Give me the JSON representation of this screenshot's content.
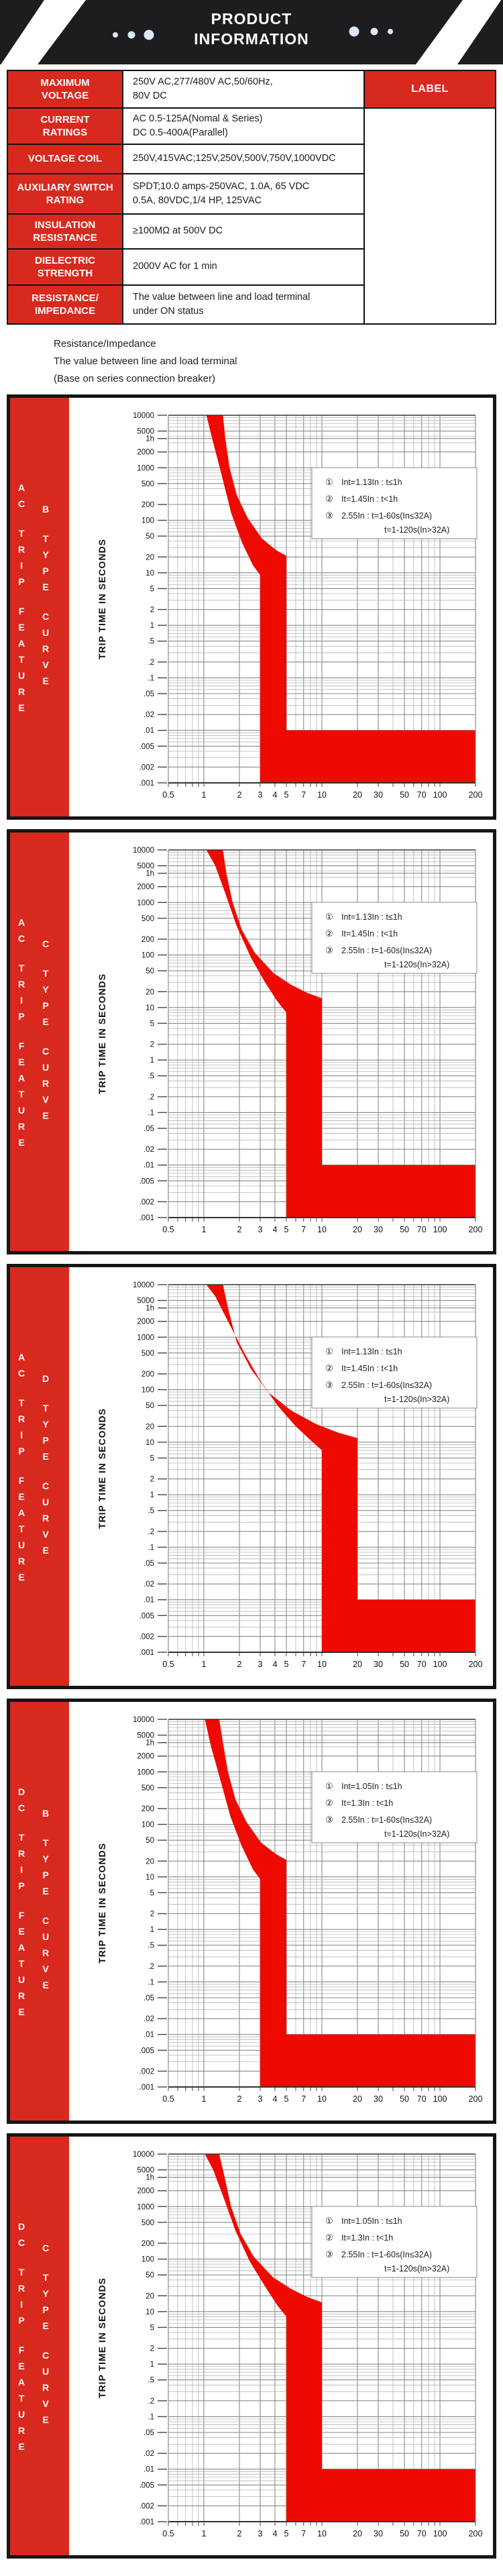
{
  "colors": {
    "accent_red": "#d8291f",
    "curve_red": "#ee0a00",
    "banner_black": "#1d1d1f",
    "dot_blue": "#dce8f7",
    "grid_gray": "#b0b0b0"
  },
  "header": {
    "line1": "PRODUCT",
    "line2": "INFORMATION"
  },
  "table": {
    "side_label": "LABEL",
    "rows": [
      {
        "label": "MAXIMUM\nVOLTAGE",
        "value": "250V AC,277/480V AC,50/60Hz,\n80V DC"
      },
      {
        "label": "CURRENT\nRATINGS",
        "value": "AC 0.5-125A(Nomal & Series)\nDC 0.5-400A(Parallel)"
      },
      {
        "label": "VOLTAGE COIL",
        "value": "250V,415VAC;125V,250V,500V,750V,1000VDC"
      },
      {
        "label": "AUXILIARY SWITCH\nRATING",
        "value": "SPDT;10.0 amps-250VAC, 1.0A, 65 VDC\n0.5A, 80VDC,1/4 HP, 125VAC"
      },
      {
        "label": "INSULATION\nRESISTANCE",
        "value": "≥100MΩ at 500V DC"
      },
      {
        "label": "DIELECTRIC\nSTRENGTH",
        "value": "2000V AC for 1 min"
      },
      {
        "label": "RESISTANCE/\nIMPEDANCE",
        "value": "The value between line and load terminal\nunder ON status"
      }
    ]
  },
  "notes": [
    "Resistance/Impedance",
    "The value between line and load terminal",
    "(Base on series connection breaker)"
  ],
  "axis": {
    "y_title": "TRIP TIME IN SECONDS",
    "x_range": [
      0.5,
      200
    ],
    "y_range": [
      0.001,
      10000
    ],
    "x_ticks": [
      [
        0.5,
        "0.5"
      ],
      [
        1,
        "1"
      ],
      [
        2,
        "2"
      ],
      [
        3,
        "3"
      ],
      [
        4,
        "4"
      ],
      [
        5,
        "5"
      ],
      [
        7,
        "7"
      ],
      [
        10,
        "10"
      ],
      [
        20,
        "20"
      ],
      [
        30,
        "30"
      ],
      [
        50,
        "50"
      ],
      [
        70,
        "70"
      ],
      [
        100,
        "100"
      ],
      [
        200,
        "200"
      ]
    ],
    "y_ticks": [
      [
        10000,
        "10000"
      ],
      [
        5000,
        "5000"
      ],
      [
        3600,
        "1h"
      ],
      [
        2000,
        "2000"
      ],
      [
        1000,
        "1000"
      ],
      [
        500,
        "500"
      ],
      [
        200,
        "200"
      ],
      [
        100,
        "100"
      ],
      [
        50,
        "50"
      ],
      [
        20,
        "20"
      ],
      [
        10,
        "10"
      ],
      [
        5,
        "5"
      ],
      [
        2,
        "2"
      ],
      [
        1,
        "1"
      ],
      [
        0.5,
        ".5"
      ],
      [
        0.2,
        ".2"
      ],
      [
        0.1,
        ".1"
      ],
      [
        0.05,
        ".05"
      ],
      [
        0.02,
        ".02"
      ],
      [
        0.01,
        ".01"
      ],
      [
        0.005,
        ".005"
      ],
      [
        0.002,
        ".002"
      ],
      [
        0.001,
        ".001"
      ]
    ]
  },
  "chart_data": [
    {
      "type": "area",
      "title": "AC TRIP FEATURE - B TYPE CURVE",
      "sidebar": [
        "AC TRIP FEATURE",
        "B TYPE CURVE"
      ],
      "legend": [
        [
          "①",
          "Int=1.13In : t≤1h"
        ],
        [
          "②",
          "It=1.45In : t<1h"
        ],
        [
          "③",
          "2.55In : t=1-60s(In≤32A)"
        ],
        [
          "",
          "t=1-120s(In>32A)"
        ]
      ],
      "band": [
        [
          1.05,
          10000
        ],
        [
          1.45,
          10000
        ],
        [
          1.52,
          3600
        ],
        [
          1.65,
          1000
        ],
        [
          1.9,
          300
        ],
        [
          2.35,
          110
        ],
        [
          3.1,
          45
        ],
        [
          4.1,
          27
        ],
        [
          5,
          21
        ],
        [
          5,
          0.01
        ],
        [
          200,
          0.01
        ],
        [
          200,
          0.001
        ],
        [
          3,
          0.001
        ],
        [
          3,
          9
        ],
        [
          2.6,
          14
        ],
        [
          2.1,
          38
        ],
        [
          1.7,
          140
        ],
        [
          1.42,
          700
        ],
        [
          1.2,
          3000
        ],
        [
          1.05,
          10000
        ]
      ]
    },
    {
      "type": "area",
      "title": "AC TRIP FEATURE - C TYPE CURVE",
      "sidebar": [
        "AC TRIP FEATURE",
        "C TYPE CURVE"
      ],
      "legend": [
        [
          "①",
          "Int=1.13In : t≤1h"
        ],
        [
          "②",
          "It=1.45In : t<1h"
        ],
        [
          "③",
          "2.55In : t=1-60s(In≤32A)"
        ],
        [
          "",
          "t=1-120s(In>32A)"
        ]
      ],
      "band": [
        [
          1.05,
          10000
        ],
        [
          1.45,
          10000
        ],
        [
          1.55,
          3600
        ],
        [
          1.75,
          1000
        ],
        [
          2.1,
          300
        ],
        [
          2.7,
          110
        ],
        [
          3.9,
          45
        ],
        [
          5.5,
          27
        ],
        [
          7.5,
          19
        ],
        [
          10,
          15
        ],
        [
          10,
          0.01
        ],
        [
          200,
          0.01
        ],
        [
          200,
          0.001
        ],
        [
          5,
          0.001
        ],
        [
          5,
          8
        ],
        [
          4.2,
          13
        ],
        [
          3.3,
          30
        ],
        [
          2.5,
          90
        ],
        [
          1.9,
          350
        ],
        [
          1.5,
          1600
        ],
        [
          1.25,
          5000
        ],
        [
          1.05,
          10000
        ]
      ]
    },
    {
      "type": "area",
      "title": "AC TRIP FEATURE - D TYPE CURVE",
      "sidebar": [
        "AC TRIP FEATURE",
        "D TYPE CURVE"
      ],
      "legend": [
        [
          "①",
          "Int=1.13In : t≤1h"
        ],
        [
          "②",
          "It=1.45In : t<1h"
        ],
        [
          "③",
          "2.55In : t=1-60s(In≤32A)"
        ],
        [
          "",
          "t=1-120s(In>32A)"
        ]
      ],
      "band": [
        [
          1.05,
          10000
        ],
        [
          1.45,
          10000
        ],
        [
          1.6,
          3600
        ],
        [
          1.9,
          800
        ],
        [
          2.5,
          250
        ],
        [
          3.5,
          90
        ],
        [
          5.5,
          40
        ],
        [
          9,
          22
        ],
        [
          14,
          15
        ],
        [
          20,
          12
        ],
        [
          20,
          0.01
        ],
        [
          200,
          0.01
        ],
        [
          200,
          0.001
        ],
        [
          10,
          0.001
        ],
        [
          10,
          7
        ],
        [
          8,
          11
        ],
        [
          6,
          20
        ],
        [
          4.2,
          50
        ],
        [
          3,
          150
        ],
        [
          2.2,
          500
        ],
        [
          1.6,
          2000
        ],
        [
          1.25,
          6000
        ],
        [
          1.05,
          10000
        ]
      ]
    },
    {
      "type": "area",
      "title": "DC TRIP FEATURE - B TYPE CURVE",
      "sidebar": [
        "DC TRIP FEATURE",
        "B TYPE CURVE"
      ],
      "legend": [
        [
          "①",
          "Int=1.05In : t≤1h"
        ],
        [
          "②",
          "It=1.3In : t<1h"
        ],
        [
          "③",
          "2.55In : t=1-60s(In≤32A)"
        ],
        [
          "",
          "t=1-120s(In>32A)"
        ]
      ],
      "band": [
        [
          1.02,
          10000
        ],
        [
          1.35,
          10000
        ],
        [
          1.45,
          3600
        ],
        [
          1.6,
          1000
        ],
        [
          1.85,
          300
        ],
        [
          2.3,
          110
        ],
        [
          3.05,
          45
        ],
        [
          4.1,
          27
        ],
        [
          5,
          21
        ],
        [
          5,
          0.01
        ],
        [
          200,
          0.01
        ],
        [
          200,
          0.001
        ],
        [
          3,
          0.001
        ],
        [
          3,
          9
        ],
        [
          2.6,
          14
        ],
        [
          2.1,
          38
        ],
        [
          1.68,
          140
        ],
        [
          1.38,
          700
        ],
        [
          1.15,
          3000
        ],
        [
          1.02,
          10000
        ]
      ]
    },
    {
      "type": "area",
      "title": "DC TRIP FEATURE - C TYPE CURVE",
      "sidebar": [
        "DC TRIP FEATURE",
        "C TYPE CURVE"
      ],
      "legend": [
        [
          "①",
          "Int=1.05In : t≤1h"
        ],
        [
          "②",
          "It=1.3In : t<1h"
        ],
        [
          "③",
          "2.55In : t=1-60s(In≤32A)"
        ],
        [
          "",
          "t=1-120s(In>32A)"
        ]
      ],
      "band": [
        [
          1.02,
          10000
        ],
        [
          1.35,
          10000
        ],
        [
          1.5,
          3600
        ],
        [
          1.7,
          1000
        ],
        [
          2.05,
          300
        ],
        [
          2.65,
          110
        ],
        [
          3.85,
          45
        ],
        [
          5.5,
          27
        ],
        [
          7.5,
          19
        ],
        [
          10,
          15
        ],
        [
          10,
          0.01
        ],
        [
          200,
          0.01
        ],
        [
          200,
          0.001
        ],
        [
          5,
          0.001
        ],
        [
          5,
          8
        ],
        [
          4.2,
          13
        ],
        [
          3.3,
          30
        ],
        [
          2.45,
          90
        ],
        [
          1.85,
          350
        ],
        [
          1.45,
          1600
        ],
        [
          1.2,
          5000
        ],
        [
          1.02,
          10000
        ]
      ]
    }
  ]
}
